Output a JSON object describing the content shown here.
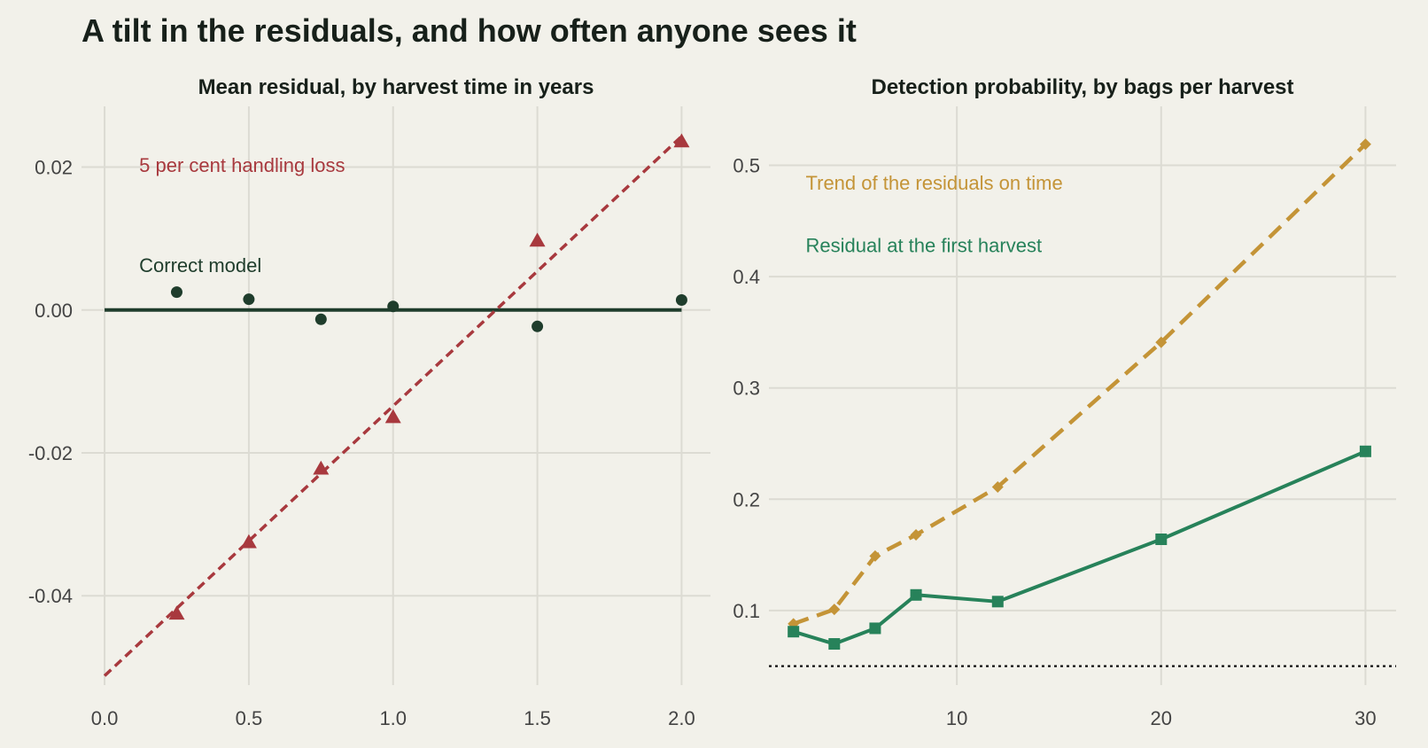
{
  "title": "A tilt in the residuals, and how often anyone sees it",
  "colors": {
    "background": "#f2f1ea",
    "grid": "#dcdbd3",
    "correct": "#1f3d2c",
    "handling": "#a8393e",
    "trend": "#c49437",
    "first_harvest": "#27825a",
    "reference": "#111111"
  },
  "chart_data": [
    {
      "type": "scatter",
      "title": "Mean residual, by harvest time in years",
      "xlabel": "",
      "ylabel": "",
      "xlim": [
        -0.08,
        2.1
      ],
      "ylim": [
        -0.0525,
        0.0285
      ],
      "xticks": [
        0.0,
        0.5,
        1.0,
        1.5,
        2.0
      ],
      "xtick_labels": [
        "0.0",
        "0.5",
        "1.0",
        "1.5",
        "2.0"
      ],
      "yticks": [
        -0.04,
        -0.02,
        0.0,
        0.02
      ],
      "ytick_labels": [
        "-0.04",
        "-0.02",
        "0.00",
        "0.02"
      ],
      "grid": true,
      "series": [
        {
          "name": "Correct model",
          "marker": "circle",
          "points": {
            "x": [
              0.25,
              0.5,
              0.75,
              1.0,
              1.5,
              2.0
            ],
            "y": [
              0.0025,
              0.0015,
              -0.0013,
              0.0005,
              -0.0023,
              0.0014
            ]
          },
          "fit": {
            "x": [
              0.0,
              2.0
            ],
            "y": [
              0.0,
              0.0
            ],
            "style": "solid"
          }
        },
        {
          "name": "5 per cent handling loss",
          "marker": "triangle",
          "points": {
            "x": [
              0.25,
              0.5,
              0.75,
              1.0,
              1.5,
              2.0
            ],
            "y": [
              -0.0425,
              -0.0325,
              -0.0222,
              -0.015,
              0.0097,
              0.0236
            ]
          },
          "fit": {
            "x": [
              0.0,
              2.0
            ],
            "y": [
              -0.0512,
              0.0243
            ],
            "style": "dashed"
          }
        }
      ],
      "annotations": [
        {
          "text": "5 per cent handling loss",
          "x": 0.12,
          "y": 0.0193,
          "series": "handling"
        },
        {
          "text": "Correct model",
          "x": 0.12,
          "y": 0.0053,
          "series": "correct"
        }
      ]
    },
    {
      "type": "line",
      "title": "Detection probability, by bags per harvest",
      "xlabel": "",
      "ylabel": "",
      "xlim": [
        0.8,
        31.5
      ],
      "ylim": [
        0.033,
        0.553
      ],
      "xticks": [
        10,
        20,
        30
      ],
      "xtick_labels": [
        "10",
        "20",
        "30"
      ],
      "yticks": [
        0.1,
        0.2,
        0.3,
        0.4,
        0.5
      ],
      "ytick_labels": [
        "0.1",
        "0.2",
        "0.3",
        "0.4",
        "0.5"
      ],
      "grid": true,
      "reference_line": {
        "y": 0.05,
        "style": "dotted"
      },
      "series": [
        {
          "name": "Trend of the residuals on time",
          "marker": "diamond",
          "style": "dashed",
          "x": [
            2,
            4,
            6,
            8,
            12,
            20,
            30
          ],
          "y": [
            0.088,
            0.101,
            0.149,
            0.168,
            0.211,
            0.341,
            0.519
          ]
        },
        {
          "name": "Residual at the first harvest",
          "marker": "square",
          "style": "solid",
          "x": [
            2,
            4,
            6,
            8,
            12,
            20,
            30
          ],
          "y": [
            0.081,
            0.07,
            0.084,
            0.114,
            0.108,
            0.164,
            0.243
          ]
        }
      ],
      "annotations": [
        {
          "text": "Trend of the residuals on time",
          "x": 2.6,
          "y": 0.478,
          "series": "trend"
        },
        {
          "text": "Residual at the first harvest",
          "x": 2.6,
          "y": 0.422,
          "series": "first_harvest"
        }
      ]
    }
  ]
}
